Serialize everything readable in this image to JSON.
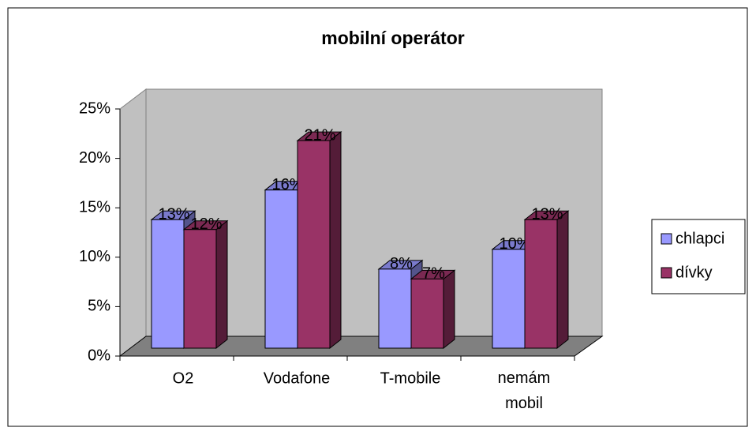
{
  "chart_data": {
    "type": "bar3d",
    "title": "mobilní operátor",
    "categories": [
      "O2",
      "Vodafone",
      "T-mobile",
      "nemám mobil"
    ],
    "series": [
      {
        "name": "chlapci",
        "color": "#9999ff",
        "values": [
          13,
          16,
          8,
          10
        ],
        "value_labels": [
          "13%",
          "16%",
          "8%",
          "10%"
        ]
      },
      {
        "name": "dívky",
        "color": "#993366",
        "values": [
          12,
          21,
          7,
          13
        ],
        "value_labels": [
          "12%",
          "21%",
          "7%",
          "13%"
        ]
      }
    ],
    "ylim": [
      0,
      25
    ],
    "yticks": [
      {
        "value": 0,
        "label": "0%"
      },
      {
        "value": 5,
        "label": "5%"
      },
      {
        "value": 10,
        "label": "10%"
      },
      {
        "value": 15,
        "label": "15%"
      },
      {
        "value": 20,
        "label": "20%"
      },
      {
        "value": 25,
        "label": "25%"
      }
    ],
    "grid": false,
    "legend": "right"
  }
}
